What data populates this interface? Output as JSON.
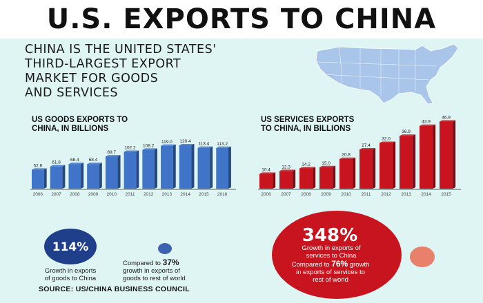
{
  "header": {
    "title": "U.S. EXPORTS TO CHINA",
    "subtitle_lines": [
      "CHINA IS THE UNITED STATES'",
      "THIRD-LARGEST EXPORT",
      "MARKET FOR GOODS",
      "AND SERVICES"
    ]
  },
  "chart_data": [
    {
      "type": "bar",
      "title_lines": [
        "US GOODS EXPORTS TO",
        "CHINA, IN BILLIONS"
      ],
      "categories": [
        "2006",
        "2007",
        "2008",
        "2009",
        "2010",
        "2011",
        "2012",
        "2013",
        "2014",
        "2015",
        "2016"
      ],
      "values": [
        52.8,
        61.8,
        68.4,
        68.4,
        89.7,
        102.2,
        108.2,
        119.0,
        120.4,
        113.4,
        113.2
      ],
      "value_labels": [
        "52.8",
        "61.8",
        "68.4",
        "68.4",
        "89.7",
        "102.2",
        "108.2",
        "119.0",
        "120.4",
        "113.4",
        "113.2"
      ],
      "color": "#3f74c8",
      "ylim": [
        0,
        130
      ]
    },
    {
      "type": "bar",
      "title_lines": [
        "US SERVICES EXPORTS",
        "TO CHINA, IN BILLIONS"
      ],
      "categories": [
        "2006",
        "2007",
        "2008",
        "2009",
        "2010",
        "2011",
        "2012",
        "2013",
        "2014",
        "2015"
      ],
      "values": [
        10.4,
        12.3,
        14.2,
        15.0,
        20.8,
        27.4,
        32.0,
        36.9,
        43.9,
        46.9
      ],
      "value_labels": [
        "10.4",
        "12.3",
        "14.2",
        "15.0",
        "20.8",
        "27.4",
        "32.0",
        "36.9",
        "43.9",
        "46.9"
      ],
      "color": "#c8141e",
      "ylim": [
        0,
        50
      ]
    }
  ],
  "stats": {
    "goods_growth": {
      "value": "114%",
      "caption_lines": [
        "Growth in exports",
        "of goods to China"
      ]
    },
    "goods_compare": {
      "prefix": "Compared to ",
      "value": "37%",
      "caption_lines": [
        "growth in exports of",
        "goods to rest of world"
      ]
    },
    "services_growth": {
      "value": "348%",
      "caption_lines": [
        "Growth in exports of",
        "services to China"
      ]
    },
    "services_compare": {
      "prefix": "Compared to ",
      "value": "76%",
      "suffix": " growth",
      "caption_lines": [
        "in exports of services to",
        "rest of world"
      ]
    }
  },
  "source": "SOURCE: US/CHINA BUSINESS COUNCIL",
  "colors": {
    "background": "#dff5f4",
    "goods_circle": "#1f3f8a",
    "goods_dot": "#3a62b0",
    "services_circle": "#c8141e",
    "services_dot": "#e8806c",
    "map": "#a9c6ea"
  }
}
